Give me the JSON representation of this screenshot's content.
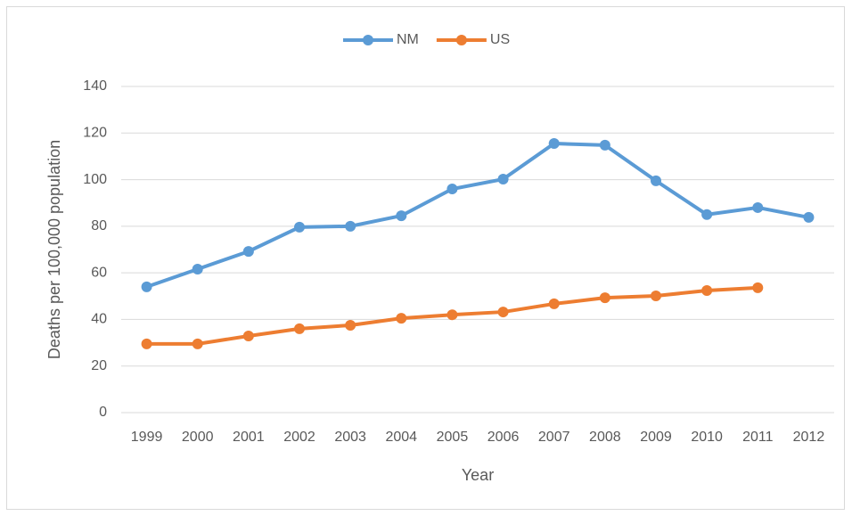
{
  "chart_data": {
    "type": "line",
    "x_label": "Year",
    "y_label": "Deaths per 100,000 population",
    "categories": [
      "1999",
      "2000",
      "2001",
      "2002",
      "2003",
      "2004",
      "2005",
      "2006",
      "2007",
      "2008",
      "2009",
      "2010",
      "2011",
      "2012"
    ],
    "series": [
      {
        "name": "NM",
        "color": "#5b9bd5",
        "values": [
          54,
          61.6,
          69.2,
          79.6,
          80,
          84.5,
          96,
          100.2,
          115.5,
          114.8,
          99.5,
          85,
          88,
          83.8
        ]
      },
      {
        "name": "US",
        "color": "#ed7d31",
        "values": [
          29.5,
          29.5,
          32.9,
          36,
          37.5,
          40.5,
          42,
          43.2,
          46.7,
          49.3,
          50.1,
          52.4,
          53.6,
          null
        ]
      }
    ],
    "ylim": [
      0,
      140
    ],
    "yticks": [
      0,
      20,
      40,
      60,
      80,
      100,
      120,
      140
    ],
    "grid": true,
    "legend": "top"
  }
}
